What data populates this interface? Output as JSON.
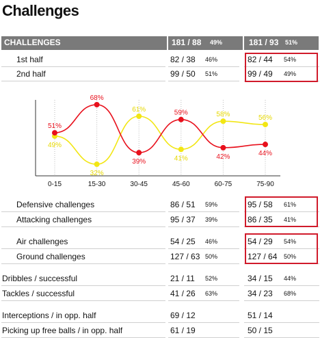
{
  "title": "Challenges",
  "header": {
    "label": "CHALLENGES",
    "t1_value": "181 / 88",
    "t1_pct": "49%",
    "t2_value": "181 / 93",
    "t2_pct": "51%"
  },
  "rows": [
    {
      "label": "1st half",
      "t1_value": "82 / 38",
      "t1_pct": "46%",
      "t2_value": "82 / 44",
      "t2_pct": "54%"
    },
    {
      "label": "2nd half",
      "t1_value": "99 / 50",
      "t1_pct": "51%",
      "t2_value": "99 / 49",
      "t2_pct": "49%"
    },
    {
      "label": "Defensive challenges",
      "t1_value": "86 / 51",
      "t1_pct": "59%",
      "t2_value": "95 / 58",
      "t2_pct": "61%"
    },
    {
      "label": "Attacking challenges",
      "t1_value": "95 / 37",
      "t1_pct": "39%",
      "t2_value": "86 / 35",
      "t2_pct": "41%"
    },
    {
      "label": "Air challenges",
      "t1_value": "54 / 25",
      "t1_pct": "46%",
      "t2_value": "54 / 29",
      "t2_pct": "54%"
    },
    {
      "label": "Ground challenges",
      "t1_value": "127 / 63",
      "t1_pct": "50%",
      "t2_value": "127 / 64",
      "t2_pct": "50%"
    },
    {
      "label": "Dribbles / successful",
      "t1_value": "21 / 11",
      "t1_pct": "52%",
      "t2_value": "34 / 15",
      "t2_pct": "44%"
    },
    {
      "label": "Tackles / successful",
      "t1_value": "41 / 26",
      "t1_pct": "63%",
      "t2_value": "34 / 23",
      "t2_pct": "68%"
    },
    {
      "label": "Interceptions / in opp. half",
      "t1_value": "69 / 12",
      "t1_pct": "",
      "t2_value": "51 / 14",
      "t2_pct": ""
    },
    {
      "label": "Picking up free balls / in opp. half",
      "t1_value": "61 / 19",
      "t1_pct": "",
      "t2_value": "50 / 15",
      "t2_pct": ""
    }
  ],
  "colors": {
    "red_series": "#e8101c",
    "yellow_series": "#f2e614",
    "header_bg": "#7a7a7a",
    "highlight_box": "#d01a2a"
  },
  "chart_data": {
    "type": "line",
    "categories": [
      "0-15",
      "15-30",
      "30-45",
      "45-60",
      "60-75",
      "75-90"
    ],
    "series": [
      {
        "values": [
          51,
          68,
          39,
          59,
          42,
          44
        ],
        "labels": [
          "51%",
          "68%",
          "39%",
          "59%",
          "42%",
          "44%"
        ],
        "color": "#e8101c"
      },
      {
        "values": [
          49,
          32,
          61,
          41,
          58,
          56
        ],
        "labels": [
          "49%",
          "32%",
          "61%",
          "41%",
          "58%",
          "56%"
        ],
        "color": "#f2e614"
      }
    ],
    "ylim": [
      25,
      75
    ],
    "grid": "vertical",
    "title": "",
    "xlabel": "",
    "ylabel": ""
  }
}
